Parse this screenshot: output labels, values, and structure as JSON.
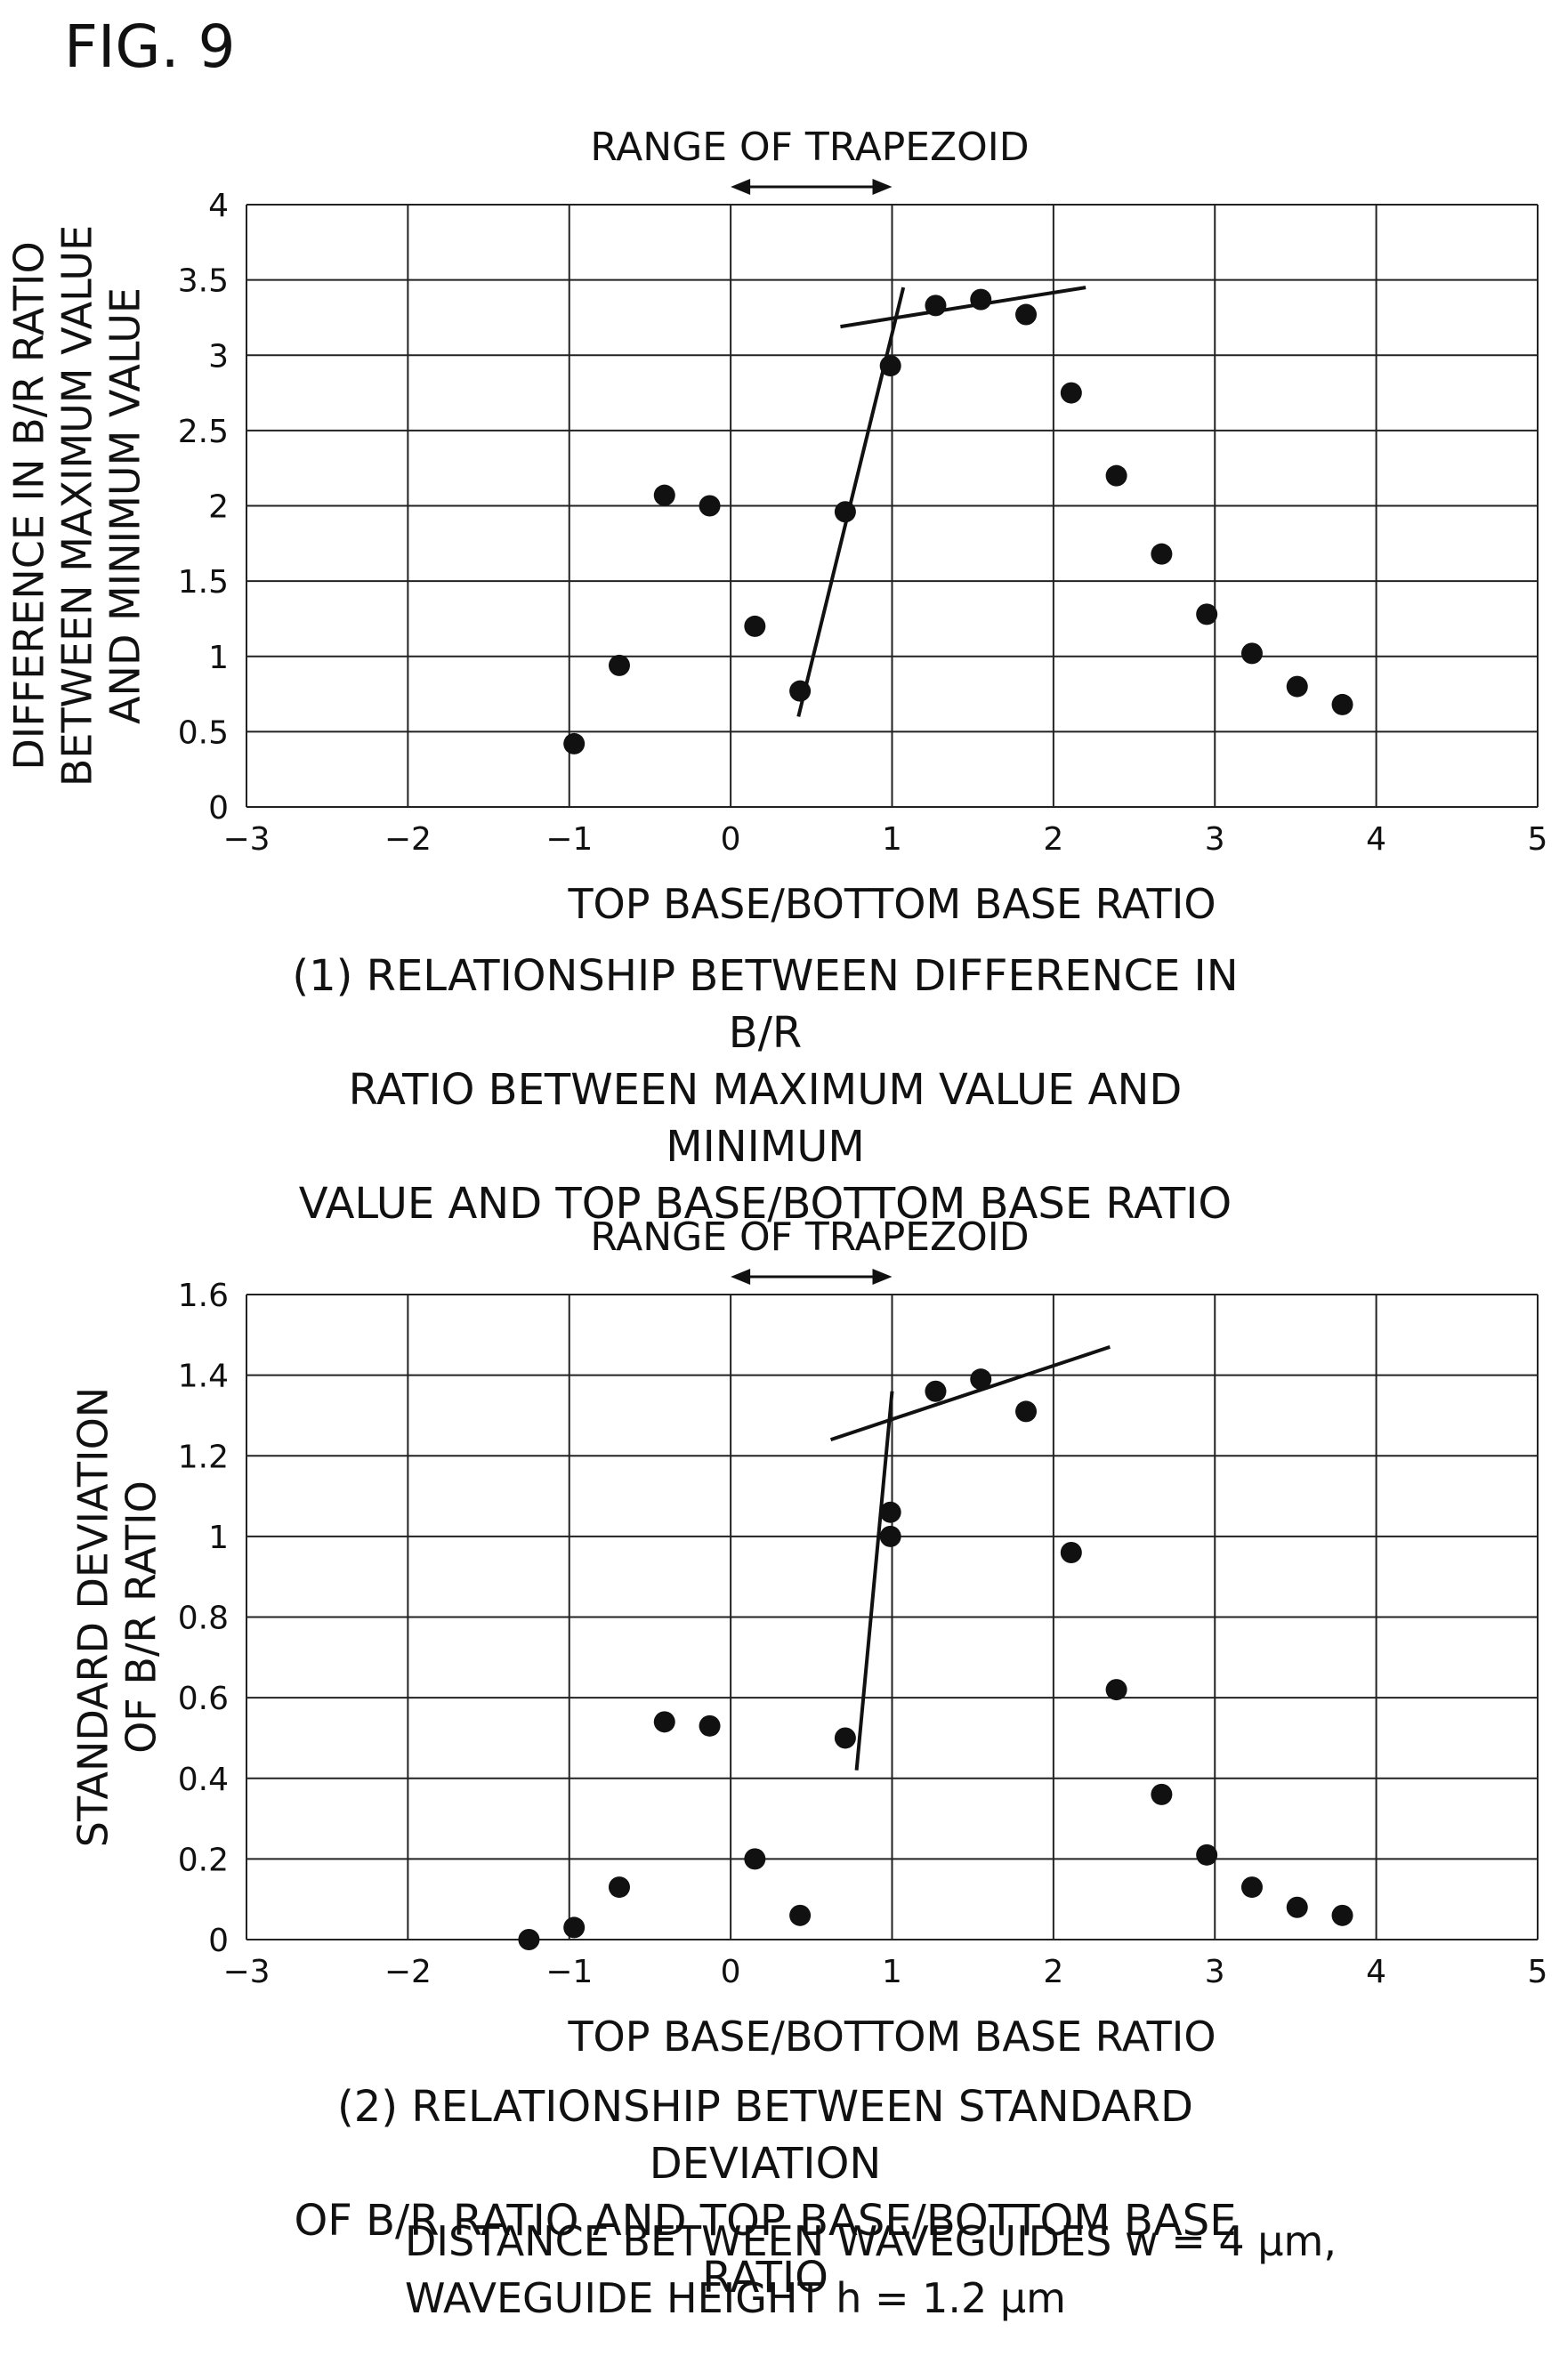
{
  "figure_label": "FIG. 9",
  "footnote": [
    "DISTANCE BETWEEN WAVEGUIDES w = 4 μm,",
    "WAVEGUIDE HEIGHT h = 1.2 μm"
  ],
  "chart_data": [
    {
      "type": "scatter",
      "annotation": "RANGE OF TRAPEZOID",
      "annotation_range_x": [
        0,
        1
      ],
      "xlabel": "TOP BASE/BOTTOM BASE RATIO",
      "ylabel": [
        "DIFFERENCE IN B/R RATIO",
        "BETWEEN MAXIMUM VALUE",
        "AND MINIMUM VALUE"
      ],
      "caption": [
        "(1) RELATIONSHIP BETWEEN DIFFERENCE IN B/R",
        "RATIO BETWEEN MAXIMUM VALUE AND MINIMUM",
        "VALUE AND TOP BASE/BOTTOM BASE RATIO"
      ],
      "xlim": [
        -3,
        5
      ],
      "ylim": [
        0,
        4
      ],
      "xticks": [
        -3,
        -2,
        -1,
        0,
        1,
        2,
        3,
        4,
        5
      ],
      "xtick_labels": [
        "−3",
        "−2",
        "−1",
        "0",
        "1",
        "2",
        "3",
        "4",
        "5"
      ],
      "yticks": [
        0,
        0.5,
        1,
        1.5,
        2,
        2.5,
        3,
        3.5,
        4
      ],
      "ytick_labels": [
        "0",
        "0.5",
        "1",
        "1.5",
        "2",
        "2.5",
        "3",
        "3.5",
        "4"
      ],
      "grid": true,
      "points": [
        {
          "x": -0.97,
          "y": 0.42
        },
        {
          "x": -0.69,
          "y": 0.94
        },
        {
          "x": -0.41,
          "y": 2.07
        },
        {
          "x": -0.13,
          "y": 2.0
        },
        {
          "x": 0.15,
          "y": 1.2
        },
        {
          "x": 0.43,
          "y": 0.77
        },
        {
          "x": 0.71,
          "y": 1.96
        },
        {
          "x": 0.99,
          "y": 2.93
        },
        {
          "x": 1.27,
          "y": 3.33
        },
        {
          "x": 1.55,
          "y": 3.37
        },
        {
          "x": 1.83,
          "y": 3.27
        },
        {
          "x": 2.11,
          "y": 2.75
        },
        {
          "x": 2.39,
          "y": 2.2
        },
        {
          "x": 2.67,
          "y": 1.68
        },
        {
          "x": 2.95,
          "y": 1.28
        },
        {
          "x": 3.23,
          "y": 1.02
        },
        {
          "x": 3.51,
          "y": 0.8
        },
        {
          "x": 3.79,
          "y": 0.68
        }
      ],
      "trend_lines": [
        {
          "x1": 0.42,
          "y1": 0.6,
          "x2": 1.07,
          "y2": 3.45
        },
        {
          "x1": 0.68,
          "y1": 3.19,
          "x2": 2.2,
          "y2": 3.45
        }
      ]
    },
    {
      "type": "scatter",
      "annotation": "RANGE OF TRAPEZOID",
      "annotation_range_x": [
        0,
        1
      ],
      "xlabel": "TOP BASE/BOTTOM BASE RATIO",
      "ylabel": [
        "STANDARD DEVIATION",
        "OF B/R RATIO"
      ],
      "caption": [
        "(2) RELATIONSHIP BETWEEN STANDARD DEVIATION",
        "OF B/R RATIO AND TOP BASE/BOTTOM BASE RATIO"
      ],
      "xlim": [
        -3,
        5
      ],
      "ylim": [
        0,
        1.6
      ],
      "xticks": [
        -3,
        -2,
        -1,
        0,
        1,
        2,
        3,
        4,
        5
      ],
      "xtick_labels": [
        "−3",
        "−2",
        "−1",
        "0",
        "1",
        "2",
        "3",
        "4",
        "5"
      ],
      "yticks": [
        0,
        0.2,
        0.4,
        0.6,
        0.8,
        1,
        1.2,
        1.4,
        1.6
      ],
      "ytick_labels": [
        "0",
        "0.2",
        "0.4",
        "0.6",
        "0.8",
        "1",
        "1.2",
        "1.4",
        "1.6"
      ],
      "grid": true,
      "points": [
        {
          "x": -1.25,
          "y": 0.0
        },
        {
          "x": -0.97,
          "y": 0.03
        },
        {
          "x": -0.69,
          "y": 0.13
        },
        {
          "x": -0.41,
          "y": 0.54
        },
        {
          "x": -0.13,
          "y": 0.53
        },
        {
          "x": 0.15,
          "y": 0.2
        },
        {
          "x": 0.43,
          "y": 0.06
        },
        {
          "x": 0.71,
          "y": 0.5
        },
        {
          "x": 0.99,
          "y": 1.06
        },
        {
          "x": 0.99,
          "y": 1.0
        },
        {
          "x": 1.27,
          "y": 1.36
        },
        {
          "x": 1.55,
          "y": 1.39
        },
        {
          "x": 1.83,
          "y": 1.31
        },
        {
          "x": 2.11,
          "y": 0.96
        },
        {
          "x": 2.39,
          "y": 0.62
        },
        {
          "x": 2.67,
          "y": 0.36
        },
        {
          "x": 2.95,
          "y": 0.21
        },
        {
          "x": 3.23,
          "y": 0.13
        },
        {
          "x": 3.51,
          "y": 0.08
        },
        {
          "x": 3.79,
          "y": 0.06
        }
      ],
      "trend_lines": [
        {
          "x1": 0.78,
          "y1": 0.42,
          "x2": 1.0,
          "y2": 1.36
        },
        {
          "x1": 0.62,
          "y1": 1.24,
          "x2": 2.35,
          "y2": 1.47
        }
      ]
    }
  ]
}
